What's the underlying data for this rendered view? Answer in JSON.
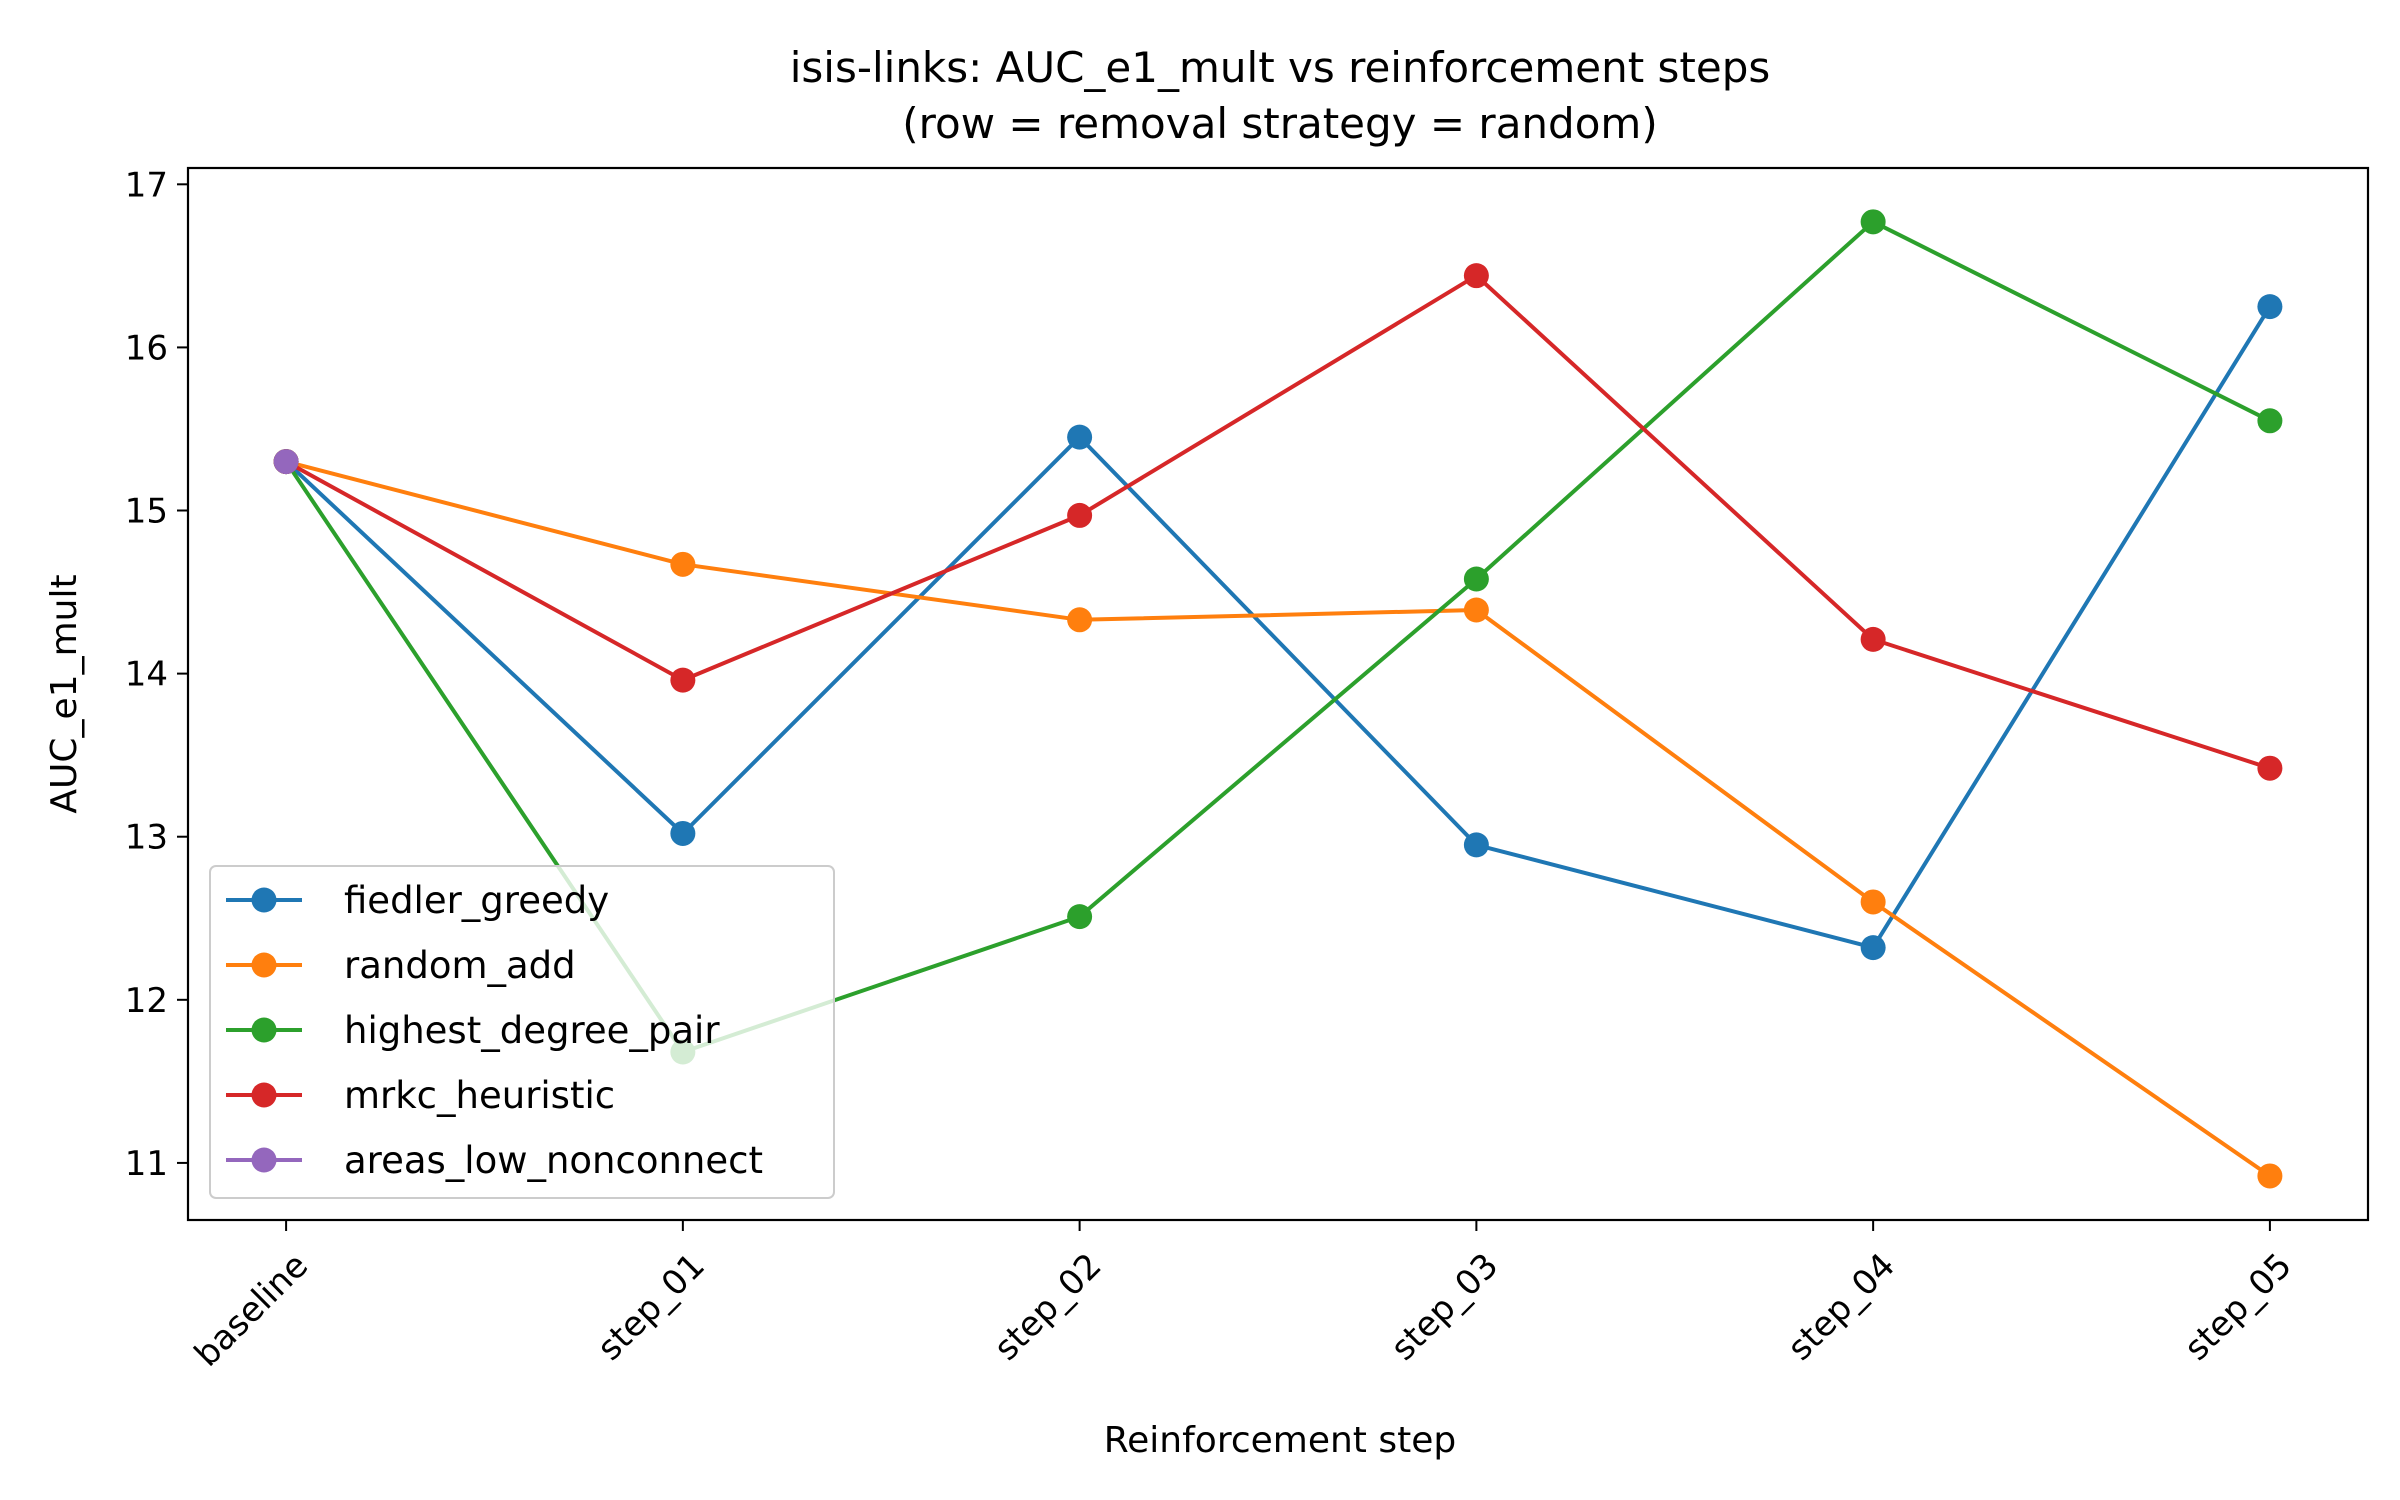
{
  "chart_data": {
    "type": "line",
    "title": "isis-links: AUC_e1_mult vs reinforcement steps",
    "subtitle": "(row = removal strategy = random)",
    "xlabel": "Reinforcement step",
    "ylabel": "AUC_e1_mult",
    "categories": [
      "baseline",
      "step_01",
      "step_02",
      "step_03",
      "step_04",
      "step_05"
    ],
    "ylim": [
      10.65,
      17.1
    ],
    "yticks": [
      11,
      12,
      13,
      14,
      15,
      16,
      17
    ],
    "grid": false,
    "legend_position": "lower-left",
    "series": [
      {
        "name": "fiedler_greedy",
        "color": "#1f77b4",
        "values": [
          15.3,
          13.02,
          15.45,
          12.95,
          12.32,
          16.25
        ]
      },
      {
        "name": "random_add",
        "color": "#ff7f0e",
        "values": [
          15.3,
          14.67,
          14.33,
          14.39,
          12.6,
          10.92
        ]
      },
      {
        "name": "highest_degree_pair",
        "color": "#2ca02c",
        "values": [
          15.3,
          11.68,
          12.51,
          14.58,
          16.77,
          15.55
        ]
      },
      {
        "name": "mrkc_heuristic",
        "color": "#d62728",
        "values": [
          15.3,
          13.96,
          14.97,
          16.44,
          14.21,
          13.42
        ]
      },
      {
        "name": "areas_low_nonconnect",
        "color": "#9467bd",
        "values": [
          15.3,
          null,
          null,
          null,
          null,
          null
        ]
      }
    ]
  }
}
